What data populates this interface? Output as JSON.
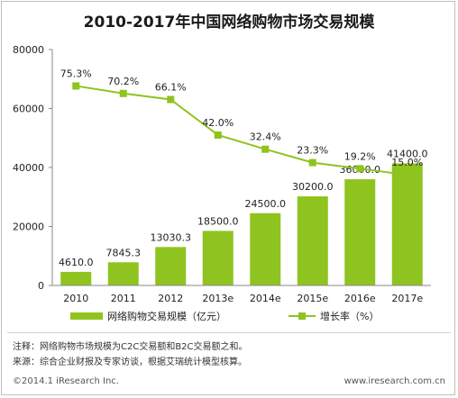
{
  "chart_data": {
    "type": "bar+line",
    "title": "2010-2017年中国网络购物市场交易规模",
    "categories": [
      "2010",
      "2011",
      "2012",
      "2013e",
      "2014e",
      "2015e",
      "2016e",
      "2017e"
    ],
    "series": [
      {
        "name": "网络购物交易规模（亿元）",
        "type": "bar",
        "axis": "left",
        "values": [
          4610.0,
          7845.3,
          13030.3,
          18500.0,
          24500.0,
          30200.0,
          36000.0,
          41400.0
        ],
        "labels": [
          "4610.0",
          "7845.3",
          "13030.3",
          "18500.0",
          "24500.0",
          "30200.0",
          "36000.0",
          "41400.0"
        ],
        "color": "#8fc31f"
      },
      {
        "name": "增长率（%）",
        "type": "line",
        "axis": "right",
        "values": [
          75.3,
          70.2,
          66.1,
          42.0,
          32.4,
          23.3,
          19.2,
          15.0
        ],
        "labels": [
          "75.3%",
          "70.2%",
          "66.1%",
          "42.0%",
          "32.4%",
          "23.3%",
          "19.2%",
          "15.0%"
        ],
        "color": "#8fc31f"
      }
    ],
    "yticks": [
      "0",
      "20000",
      "40000",
      "60000",
      "80000"
    ],
    "ylim": [
      0,
      80000
    ],
    "y2lim": [
      -60,
      100
    ],
    "grid": false,
    "legend": "bottom"
  },
  "notes": [
    "注释：网络购物市场规模为C2C交易额和B2C交易额之和。",
    "来源：综合企业财报及专家访谈，根据艾瑞统计模型核算。"
  ],
  "footer": {
    "left": "©2014.1 iResearch Inc.",
    "right": "www.iresearch.com.cn"
  }
}
